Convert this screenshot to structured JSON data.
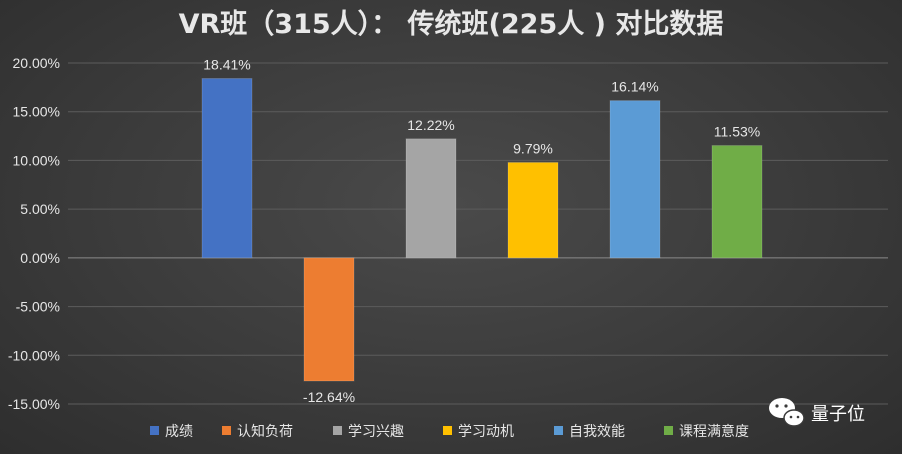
{
  "chart_data": {
    "type": "bar",
    "title": "VR班（315人）： 传统班(225人 ) 对比数据",
    "categories": [
      "成绩",
      "认知负荷",
      "学习兴趣",
      "学习动机",
      "自我效能",
      "课程满意度"
    ],
    "values": [
      18.41,
      -12.64,
      12.22,
      9.79,
      16.14,
      11.53
    ],
    "data_labels": [
      "18.41%",
      "-12.64%",
      "12.22%",
      "9.79%",
      "16.14%",
      "11.53%"
    ],
    "bar_colors": [
      "#4472c4",
      "#ed7d31",
      "#a5a5a5",
      "#ffc000",
      "#5b9bd5",
      "#70ad47"
    ],
    "yticks": [
      20,
      15,
      10,
      5,
      0,
      -5,
      -10,
      -15
    ],
    "ytick_labels": [
      "20.00%",
      "15.00%",
      "10.00%",
      "5.00%",
      "0.00%",
      "-5.00%",
      "-10.00%",
      "-15.00%"
    ],
    "ylim": [
      -15,
      20
    ],
    "xlabel": "",
    "ylabel": "",
    "grid": true,
    "legend_position": "bottom",
    "background_color": "#3d3d3d"
  },
  "watermark": {
    "text": "量子位",
    "icon": "wechat-icon"
  }
}
